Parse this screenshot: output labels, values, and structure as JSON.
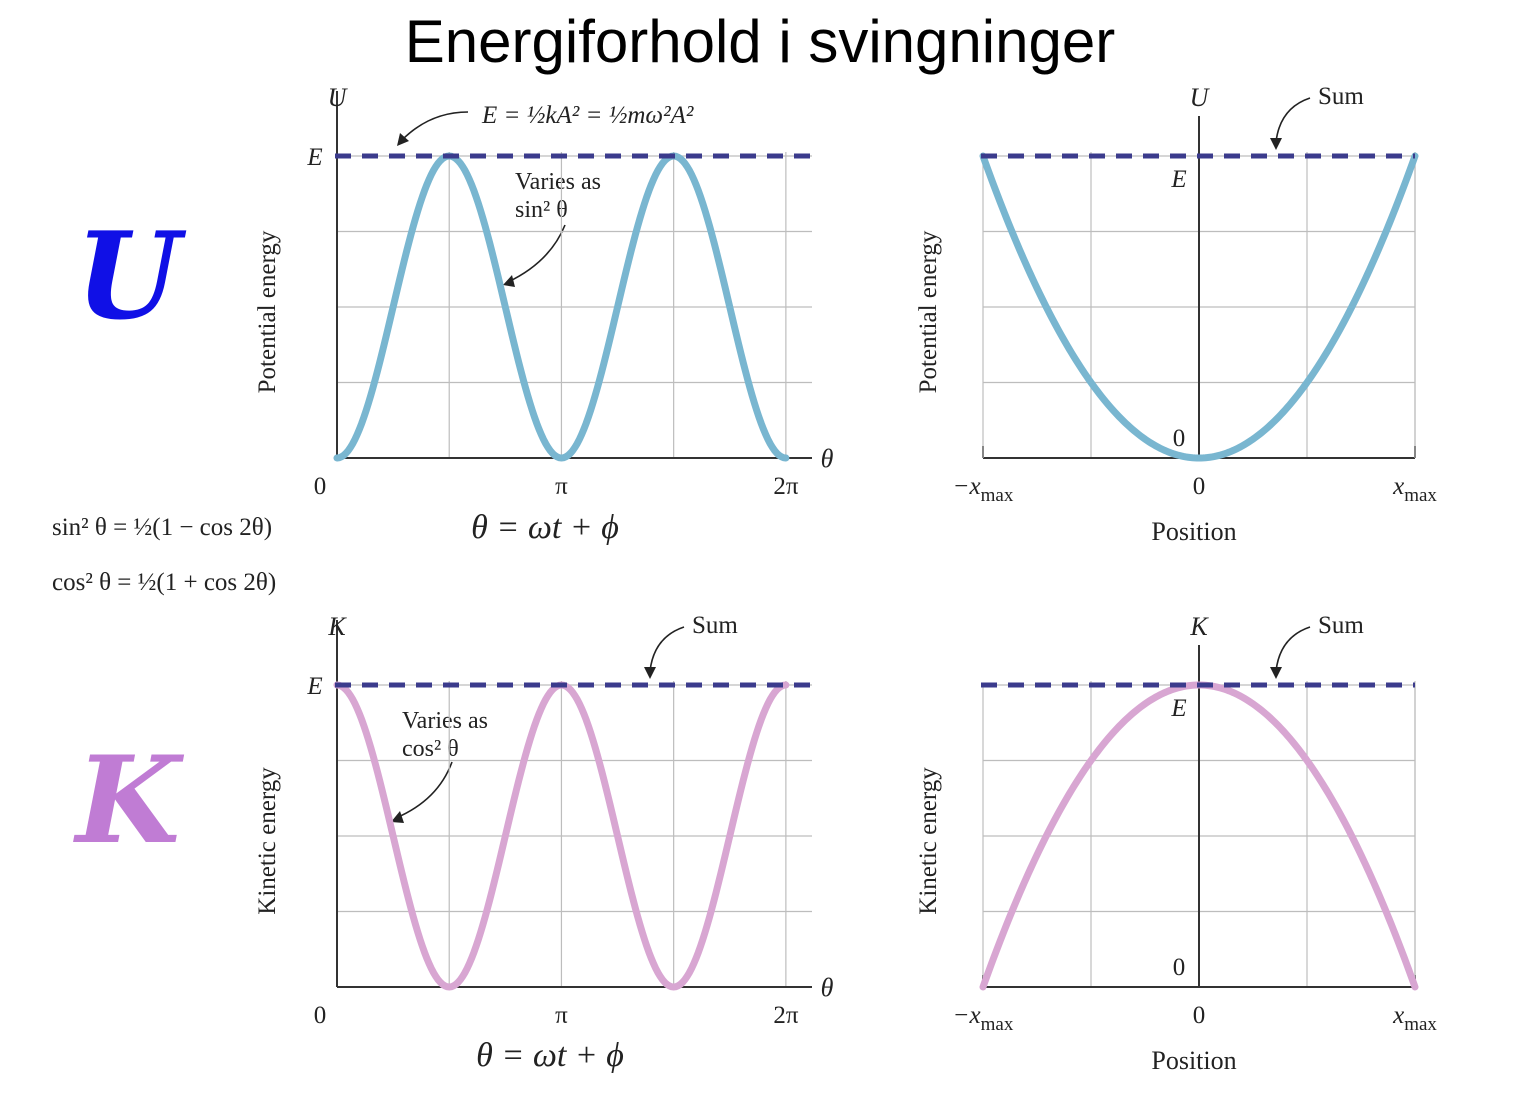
{
  "title": "Energiforhold i svingninger",
  "colors": {
    "potential": "#79b6d0",
    "kinetic": "#d8a6d2",
    "sum_line": "#3b3b8c",
    "big_U": "#1010e6",
    "big_K": "#c07cd4"
  },
  "big_letters": {
    "U": "U",
    "K": "K"
  },
  "identities": {
    "sin_line": "sin² θ = ½(1 − cos 2θ)",
    "cos_line": "cos² θ = ½(1 + cos 2θ)"
  },
  "theta_formula": "θ = ωt + ϕ",
  "energy_formula": "E = ½kA² = ½mω²A²",
  "annotations": {
    "sum": "Sum",
    "varies_as": "Varies as",
    "sin2": "sin² θ",
    "cos2": "cos² θ"
  },
  "chart_data": [
    {
      "type": "line",
      "name": "potential-vs-theta",
      "ylabel": "Potential energy",
      "y_axis_symbol": "U",
      "x_axis_symbol": "θ",
      "function": "E·sin²θ",
      "xlim": [
        0,
        6.2832
      ],
      "ylim": [
        0,
        1
      ],
      "x_ticks": [
        {
          "value": 0,
          "label": "0"
        },
        {
          "value": 3.1416,
          "label": "π"
        },
        {
          "value": 6.2832,
          "label": "2π"
        }
      ],
      "y_ticks": [
        {
          "value": 1,
          "label": "E"
        }
      ],
      "sum_level": 1,
      "grid": true
    },
    {
      "type": "line",
      "name": "potential-vs-position",
      "ylabel": "Potential energy",
      "xlabel": "Position",
      "y_axis_symbol": "U",
      "function": "E·(x/xmax)²",
      "xlim": [
        -1,
        1
      ],
      "ylim": [
        0,
        1
      ],
      "x_ticks": [
        {
          "value": -1,
          "label": "−x",
          "sub": "max"
        },
        {
          "value": 0,
          "label": "0"
        },
        {
          "value": 1,
          "label": "x",
          "sub": "max"
        }
      ],
      "y_ticks": [
        {
          "value": 1,
          "label": "E"
        },
        {
          "value": 0,
          "label": "0"
        }
      ],
      "sum_level": 1,
      "grid": true
    },
    {
      "type": "line",
      "name": "kinetic-vs-theta",
      "ylabel": "Kinetic energy",
      "y_axis_symbol": "K",
      "x_axis_symbol": "θ",
      "function": "E·cos²θ",
      "xlim": [
        0,
        6.2832
      ],
      "ylim": [
        0,
        1
      ],
      "x_ticks": [
        {
          "value": 0,
          "label": "0"
        },
        {
          "value": 3.1416,
          "label": "π"
        },
        {
          "value": 6.2832,
          "label": "2π"
        }
      ],
      "y_ticks": [
        {
          "value": 1,
          "label": "E"
        }
      ],
      "sum_level": 1,
      "grid": true
    },
    {
      "type": "line",
      "name": "kinetic-vs-position",
      "ylabel": "Kinetic energy",
      "xlabel": "Position",
      "y_axis_symbol": "K",
      "function": "E·(1 − (x/xmax)²)",
      "xlim": [
        -1,
        1
      ],
      "ylim": [
        0,
        1
      ],
      "x_ticks": [
        {
          "value": -1,
          "label": "−x",
          "sub": "max"
        },
        {
          "value": 0,
          "label": "0"
        },
        {
          "value": 1,
          "label": "x",
          "sub": "max"
        }
      ],
      "y_ticks": [
        {
          "value": 1,
          "label": "E"
        },
        {
          "value": 0,
          "label": "0"
        }
      ],
      "sum_level": 1,
      "grid": true
    }
  ]
}
